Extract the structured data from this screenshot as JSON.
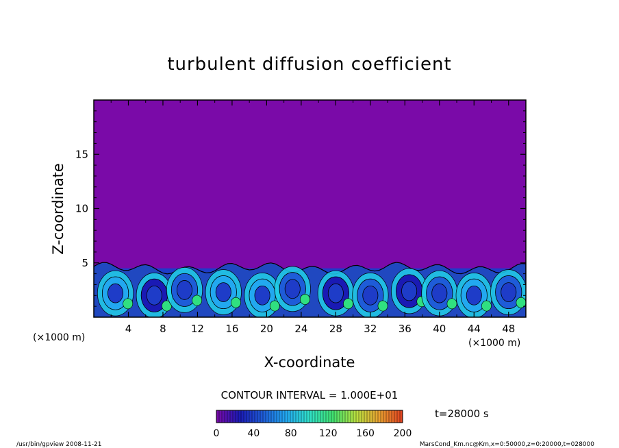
{
  "chart_data": {
    "type": "heatmap",
    "title": "turbulent diffusion coefficient",
    "xlabel": "X-coordinate",
    "ylabel": "Z-coordinate",
    "x_unit": "(×1000 m)",
    "y_unit": "(×1000 m)",
    "xlim": [
      0,
      50
    ],
    "ylim": [
      0,
      20
    ],
    "x_ticks": [
      "4",
      "8",
      "12",
      "16",
      "20",
      "24",
      "28",
      "32",
      "36",
      "40",
      "44",
      "48"
    ],
    "y_ticks": [
      "5",
      "10",
      "15"
    ],
    "x_tick_values": [
      4,
      8,
      12,
      16,
      20,
      24,
      28,
      32,
      36,
      40,
      44,
      48
    ],
    "y_tick_values": [
      5,
      10,
      15
    ],
    "background_value": 0,
    "boundary_layer_top": 4.5,
    "blobs": [
      {
        "x": 2.5,
        "z": 2.2,
        "value": 120
      },
      {
        "x": 7.0,
        "z": 2.0,
        "value": 60
      },
      {
        "x": 10.5,
        "z": 2.5,
        "value": 90
      },
      {
        "x": 15.0,
        "z": 2.3,
        "value": 110
      },
      {
        "x": 19.5,
        "z": 2.0,
        "value": 140
      },
      {
        "x": 23.0,
        "z": 2.6,
        "value": 80
      },
      {
        "x": 28.0,
        "z": 2.2,
        "value": 50
      },
      {
        "x": 32.0,
        "z": 2.0,
        "value": 70
      },
      {
        "x": 36.5,
        "z": 2.4,
        "value": 60
      },
      {
        "x": 40.0,
        "z": 2.2,
        "value": 100
      },
      {
        "x": 44.0,
        "z": 2.0,
        "value": 120
      },
      {
        "x": 48.0,
        "z": 2.3,
        "value": 90
      }
    ],
    "contour_interval": "CONTOUR INTERVAL = 1.000E+01",
    "colorbar": {
      "ticks": [
        "0",
        "40",
        "80",
        "120",
        "160",
        "200"
      ],
      "range": [
        0,
        200
      ],
      "colors": [
        "#7a0aa8",
        "#1a1ab4",
        "#1e5cd8",
        "#22a8f0",
        "#30e0c8",
        "#40e070",
        "#b8e040",
        "#e8a030",
        "#e04020"
      ]
    },
    "time_label": "t=28000 s",
    "footer_left": "/usr/bin/gpview   2008-11-21",
    "footer_right": "MarsCond_Km.nc@Km,x=0:50000,z=0:20000,t=028000",
    "colors": {
      "background_field": "#7a0aa8",
      "deep_blue": "#1e3cc8",
      "cyan": "#22d0e8",
      "green": "#30e080"
    }
  }
}
